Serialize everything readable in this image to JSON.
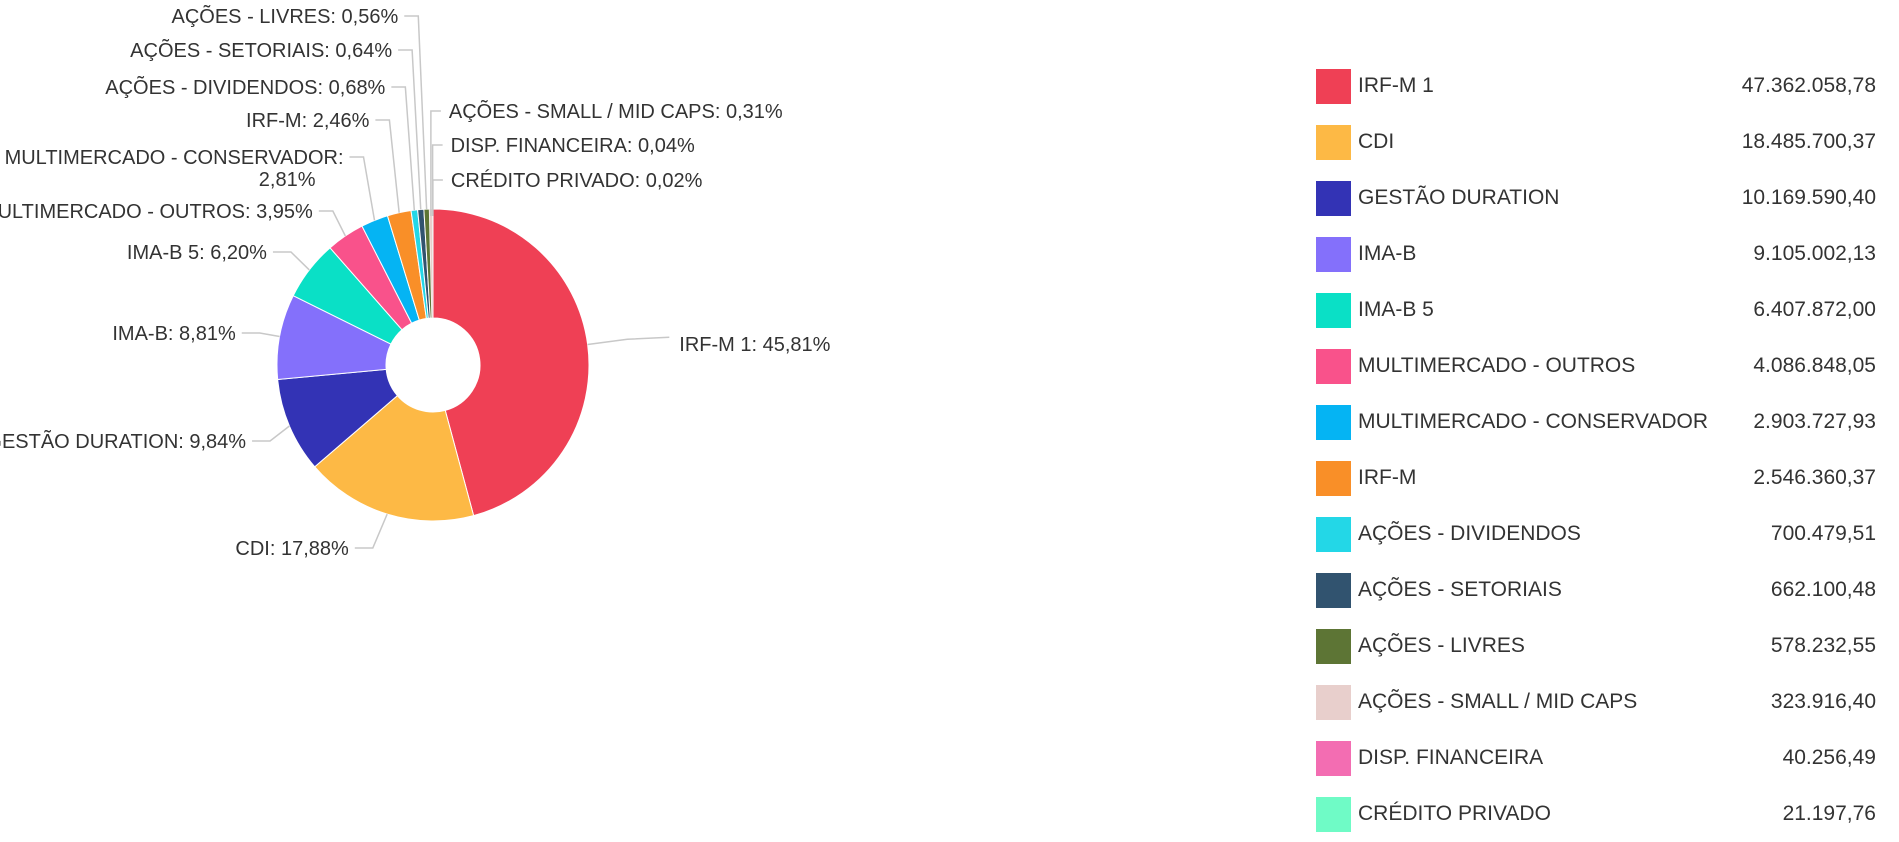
{
  "chart_data": {
    "type": "pie",
    "donut": true,
    "labels": [
      "IRF-M 1",
      "CDI",
      "GESTÃO DURATION",
      "IMA-B",
      "IMA-B 5",
      "MULTIMERCADO - OUTROS",
      "MULTIMERCADO - CONSERVADOR",
      "IRF-M",
      "AÇÕES - DIVIDENDOS",
      "AÇÕES - SETORIAIS",
      "AÇÕES - LIVRES",
      "AÇÕES - SMALL / MID CAPS",
      "DISP. FINANCEIRA",
      "CRÉDITO PRIVADO"
    ],
    "values": [
      47362058.78,
      18485700.37,
      10169590.4,
      9105002.13,
      6407872.0,
      4086848.05,
      2903727.93,
      2546360.37,
      700479.51,
      662100.48,
      578232.55,
      323916.4,
      40256.49,
      21197.76
    ],
    "value_labels": [
      "47.362.058,78",
      "18.485.700,37",
      "10.169.590,40",
      "9.105.002,13",
      "6.407.872,00",
      "4.086.848,05",
      "2.903.727,93",
      "2.546.360,37",
      "700.479,51",
      "662.100,48",
      "578.232,55",
      "323.916,40",
      "40.256,49",
      "21.197,76"
    ],
    "percent_labels": [
      "45,81%",
      "17,88%",
      "9,84%",
      "8,81%",
      "6,20%",
      "3,95%",
      "2,81%",
      "2,46%",
      "0,68%",
      "0,64%",
      "0,56%",
      "0,31%",
      "0,04%",
      "0,02%"
    ],
    "colors": [
      "#ef4055",
      "#fdb945",
      "#3333b5",
      "#8470fb",
      "#0ae0c6",
      "#f9528b",
      "#05b4f3",
      "#f98f28",
      "#23d7e7",
      "#31536f",
      "#5d7535",
      "#e8cfcc",
      "#f36db2",
      "#6ffbc6"
    ],
    "legend_position": "right"
  }
}
